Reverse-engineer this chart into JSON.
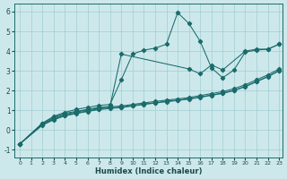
{
  "xlabel": "Humidex (Indice chaleur)",
  "xlim": [
    -0.5,
    23.3
  ],
  "ylim": [
    -1.4,
    6.4
  ],
  "xticks": [
    0,
    1,
    2,
    3,
    4,
    5,
    6,
    7,
    8,
    9,
    10,
    11,
    12,
    13,
    14,
    15,
    16,
    17,
    18,
    19,
    20,
    21,
    22,
    23
  ],
  "yticks": [
    -1,
    0,
    1,
    2,
    3,
    4,
    5,
    6
  ],
  "bg_color": "#cde8eb",
  "grid_color": "#a0cdd2",
  "line_color": "#1a6b6b",
  "lines": [
    {
      "x": [
        0,
        2,
        3,
        4,
        5,
        6,
        7,
        8,
        9,
        10,
        11,
        12,
        13,
        14,
        15,
        16,
        17,
        18,
        19,
        20,
        21,
        22,
        23
      ],
      "y": [
        -0.7,
        0.35,
        0.7,
        0.9,
        1.05,
        1.15,
        1.25,
        1.3,
        2.55,
        3.85,
        4.05,
        4.15,
        4.35,
        5.95,
        5.4,
        4.5,
        3.15,
        2.65,
        3.05,
        3.95,
        4.05,
        4.1,
        4.35
      ]
    },
    {
      "x": [
        0,
        2,
        3,
        4,
        5,
        6,
        7,
        8,
        9,
        15,
        16,
        17,
        18,
        20,
        21,
        22,
        23
      ],
      "y": [
        -0.7,
        0.35,
        0.65,
        0.85,
        0.95,
        1.05,
        1.15,
        1.2,
        3.85,
        3.1,
        2.85,
        3.3,
        3.05,
        4.0,
        4.1,
        4.1,
        4.35
      ]
    },
    {
      "x": [
        0,
        2,
        3,
        4,
        5,
        6,
        7,
        8,
        9,
        10,
        11,
        12,
        13,
        14,
        15,
        16,
        17,
        18,
        19,
        20,
        21,
        22,
        23
      ],
      "y": [
        -0.7,
        0.3,
        0.6,
        0.8,
        0.92,
        1.02,
        1.12,
        1.18,
        1.22,
        1.3,
        1.38,
        1.45,
        1.52,
        1.58,
        1.65,
        1.75,
        1.85,
        1.95,
        2.1,
        2.3,
        2.55,
        2.8,
        3.1
      ]
    },
    {
      "x": [
        0,
        2,
        3,
        4,
        5,
        6,
        7,
        8,
        9,
        10,
        11,
        12,
        13,
        14,
        15,
        16,
        17,
        18,
        19,
        20,
        21,
        22,
        23
      ],
      "y": [
        -0.7,
        0.28,
        0.55,
        0.75,
        0.87,
        0.97,
        1.07,
        1.13,
        1.17,
        1.25,
        1.32,
        1.39,
        1.46,
        1.52,
        1.59,
        1.68,
        1.78,
        1.88,
        2.02,
        2.22,
        2.47,
        2.72,
        3.02
      ]
    },
    {
      "x": [
        0,
        2,
        3,
        4,
        5,
        6,
        7,
        8,
        9,
        10,
        11,
        12,
        13,
        14,
        15,
        16,
        17,
        18,
        19,
        20,
        21,
        22,
        23
      ],
      "y": [
        -0.7,
        0.25,
        0.52,
        0.72,
        0.84,
        0.94,
        1.04,
        1.1,
        1.14,
        1.22,
        1.3,
        1.37,
        1.44,
        1.5,
        1.57,
        1.66,
        1.76,
        1.86,
        2.0,
        2.2,
        2.45,
        2.7,
        3.0
      ]
    }
  ]
}
